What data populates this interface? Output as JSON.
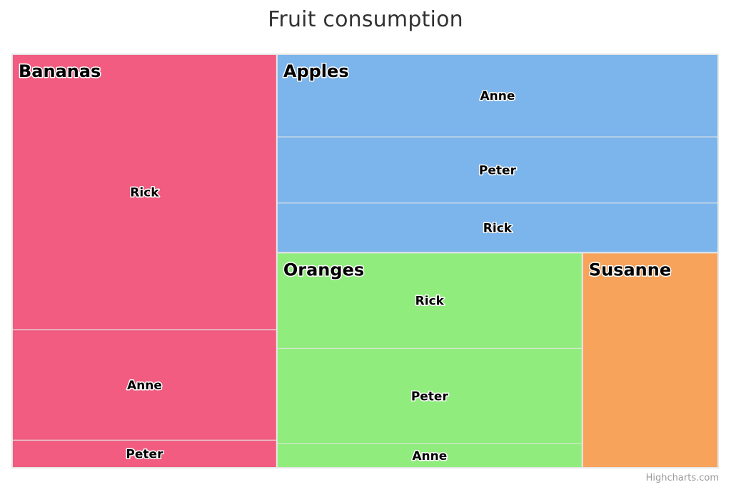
{
  "chart_data": {
    "type": "treemap",
    "title": "Fruit consumption",
    "colors": {
      "Bananas": "#f15c80",
      "Apples": "#7cb5ec",
      "Oranges": "#90ed7d",
      "Susanne": "#f7a35c"
    },
    "groups": [
      {
        "name": "Bananas",
        "color": "#f15c80",
        "children": [
          {
            "name": "Rick",
            "value": 10
          },
          {
            "name": "Anne",
            "value": 4
          },
          {
            "name": "Peter",
            "value": 1
          }
        ]
      },
      {
        "name": "Apples",
        "color": "#7cb5ec",
        "children": [
          {
            "name": "Anne",
            "value": 5
          },
          {
            "name": "Peter",
            "value": 4
          },
          {
            "name": "Rick",
            "value": 3
          }
        ]
      },
      {
        "name": "Oranges",
        "color": "#90ed7d",
        "children": [
          {
            "name": "Rick",
            "value": 4
          },
          {
            "name": "Peter",
            "value": 4
          },
          {
            "name": "Anne",
            "value": 1
          }
        ]
      },
      {
        "name": "Susanne",
        "color": "#f7a35c",
        "children": [
          {
            "name": "",
            "value": 4
          }
        ]
      }
    ]
  },
  "credits": "Highcharts.com"
}
